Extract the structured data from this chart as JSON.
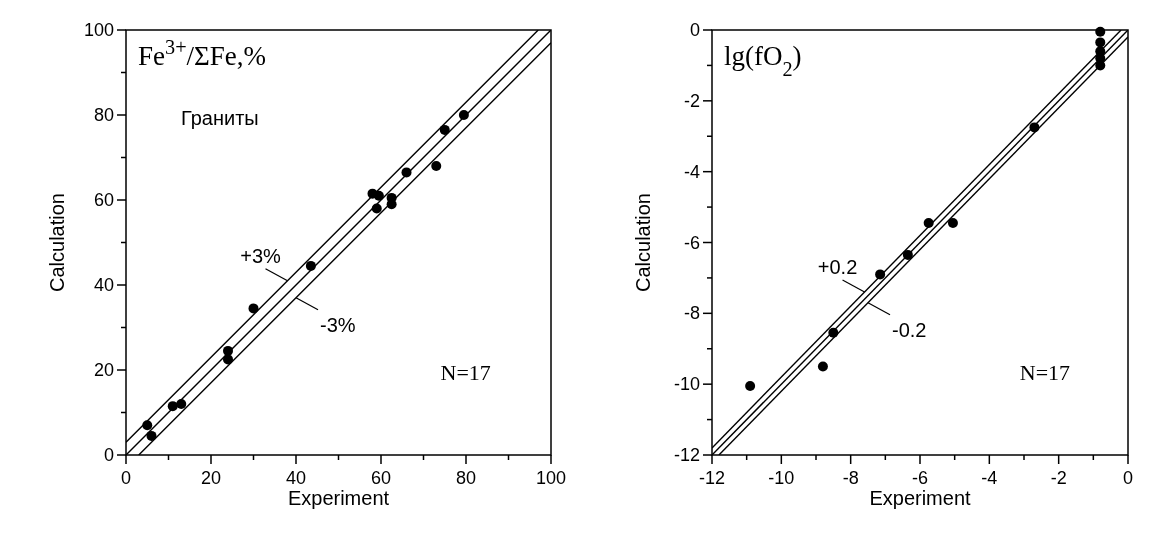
{
  "chart_data": [
    {
      "type": "scatter",
      "title": "Fe$^{3+}$/ΣFe,%",
      "xlabel": "Experiment",
      "ylabel": "Calculation",
      "grid": false,
      "xlim": [
        0,
        100
      ],
      "ylim": [
        0,
        100
      ],
      "xticks": [
        0,
        {
          "value": 10,
          "label": null
        },
        20,
        {
          "value": 30,
          "label": null
        },
        40,
        {
          "value": 50,
          "label": null
        },
        60,
        {
          "value": 70,
          "label": null
        },
        80,
        {
          "value": 90,
          "label": null
        },
        100
      ],
      "yticks": [
        0,
        {
          "value": 10,
          "label": null
        },
        20,
        {
          "value": 30,
          "label": null
        },
        40,
        {
          "value": 50,
          "label": null
        },
        60,
        {
          "value": 70,
          "label": null
        },
        80,
        {
          "value": 90,
          "label": null
        },
        100
      ],
      "series": [
        {
          "color": "#000000",
          "marker": "circle",
          "x": [
            5,
            6,
            11,
            13,
            24,
            24,
            30,
            43.5,
            58,
            59.5,
            59,
            62.5,
            62.5,
            66,
            73,
            75,
            79.5
          ],
          "values": [
            7,
            4.5,
            11.5,
            12,
            24.5,
            22.5,
            34.5,
            44.5,
            61.5,
            61,
            58,
            60.5,
            59,
            66.5,
            68,
            76.5,
            80
          ]
        },
        {
          "type": "line",
          "color": "#000000",
          "x": [
            0,
            100
          ],
          "values": [
            0,
            100
          ]
        },
        {
          "type": "line",
          "color": "#000000",
          "x": [
            0,
            97
          ],
          "values": [
            3,
            100
          ]
        },
        {
          "type": "line",
          "color": "#000000",
          "x": [
            3,
            100
          ],
          "values": [
            0,
            97
          ]
        }
      ],
      "annotations": [
        {
          "text": "+3%",
          "x": 38,
          "y": 41
        },
        {
          "text": "-3%",
          "x": 40,
          "y": 37
        },
        "Граниты",
        "N=17"
      ]
    },
    {
      "type": "scatter",
      "title": "lg(fO$_{2}$)",
      "xlabel": "Experiment",
      "ylabel": "Calculation",
      "grid": false,
      "xlim": [
        -12,
        0
      ],
      "ylim": [
        -12,
        0
      ],
      "xticks": [
        -12,
        {
          "value": -11,
          "label": null
        },
        -10,
        {
          "value": -9,
          "label": null
        },
        -8,
        {
          "value": -7,
          "label": null
        },
        -6,
        {
          "value": -5,
          "label": null
        },
        -4,
        {
          "value": -3,
          "label": null
        },
        -2,
        {
          "value": -1,
          "label": null
        },
        0
      ],
      "yticks": [
        -12,
        {
          "value": -11,
          "label": null
        },
        -10,
        {
          "value": -9,
          "label": null
        },
        -8,
        {
          "value": -7,
          "label": null
        },
        -6,
        {
          "value": -5,
          "label": null
        },
        -4,
        {
          "value": -3,
          "label": null
        },
        -2,
        {
          "value": -1,
          "label": null
        },
        0
      ],
      "series": [
        {
          "color": "#000000",
          "marker": "circle",
          "x": [
            -10.9,
            -8.8,
            -8.5,
            -7.15,
            -6.35,
            -5.75,
            -5.05,
            -2.7,
            -0.8,
            -0.8,
            -0.8,
            -0.8,
            -0.8
          ],
          "values": [
            -10.05,
            -9.5,
            -8.55,
            -6.9,
            -6.35,
            -5.45,
            -5.45,
            -2.75,
            -0.05,
            -0.35,
            -0.6,
            -0.8,
            -1.0
          ]
        },
        {
          "type": "line",
          "color": "#000000",
          "x": [
            -12,
            0
          ],
          "values": [
            -12,
            0
          ]
        },
        {
          "type": "line",
          "color": "#000000",
          "x": [
            -12,
            -0.2
          ],
          "values": [
            -11.8,
            0
          ]
        },
        {
          "type": "line",
          "color": "#000000",
          "x": [
            -11.8,
            0
          ],
          "values": [
            -12,
            -0.2
          ]
        }
      ],
      "annotations": [
        {
          "text": "+0.2",
          "x": -7.6,
          "y": -7.4
        },
        {
          "text": "-0.2",
          "x": -7.5,
          "y": -7.7
        },
        "N=17"
      ]
    }
  ]
}
